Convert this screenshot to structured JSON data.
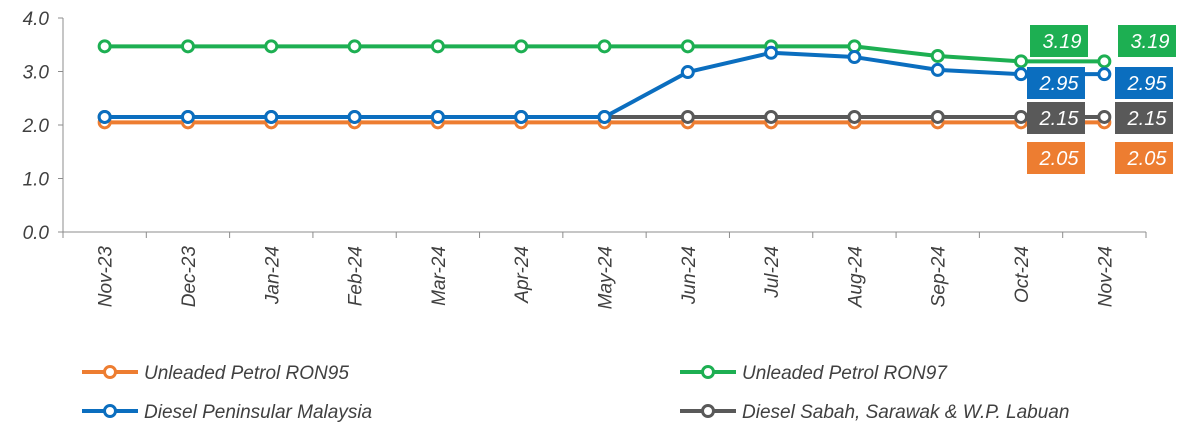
{
  "chart_data": {
    "type": "line",
    "categories": [
      "Nov-23",
      "Dec-23",
      "Jan-24",
      "Feb-24",
      "Mar-24",
      "Apr-24",
      "May-24",
      "Jun-24",
      "Jul-24",
      "Aug-24",
      "Sep-24",
      "Oct-24",
      "Nov-24"
    ],
    "ylim": [
      0,
      4
    ],
    "yticks": [
      "0.0",
      "1.0",
      "2.0",
      "3.0",
      "4.0"
    ],
    "ytick_values": [
      0,
      1,
      2,
      3,
      4
    ],
    "grid": false,
    "legend_placement": "bottom",
    "series": [
      {
        "name": "Unleaded Petrol RON95",
        "color": "#ED7D31",
        "values": [
          2.05,
          2.05,
          2.05,
          2.05,
          2.05,
          2.05,
          2.05,
          2.05,
          2.05,
          2.05,
          2.05,
          2.05,
          2.05
        ],
        "labels": [
          "2.05",
          "2.05"
        ]
      },
      {
        "name": "Unleaded Petrol RON97",
        "color": "#1DAF52",
        "values": [
          3.47,
          3.47,
          3.47,
          3.47,
          3.47,
          3.47,
          3.47,
          3.47,
          3.47,
          3.47,
          3.29,
          3.19,
          3.19
        ],
        "labels": [
          "3.19",
          "3.19"
        ]
      },
      {
        "name": "Diesel Peninsular Malaysia",
        "color": "#0B6EBF",
        "values": [
          2.15,
          2.15,
          2.15,
          2.15,
          2.15,
          2.15,
          2.15,
          2.99,
          3.35,
          3.27,
          3.03,
          2.95,
          2.95
        ],
        "labels": [
          "2.95",
          "2.95"
        ]
      },
      {
        "name": "Diesel Sabah, Sarawak & W.P. Labuan",
        "color": "#595959",
        "values": [
          2.15,
          2.15,
          2.15,
          2.15,
          2.15,
          2.15,
          2.15,
          2.15,
          2.15,
          2.15,
          2.15,
          2.15,
          2.15
        ],
        "labels": [
          "2.15",
          "2.15"
        ]
      }
    ]
  }
}
